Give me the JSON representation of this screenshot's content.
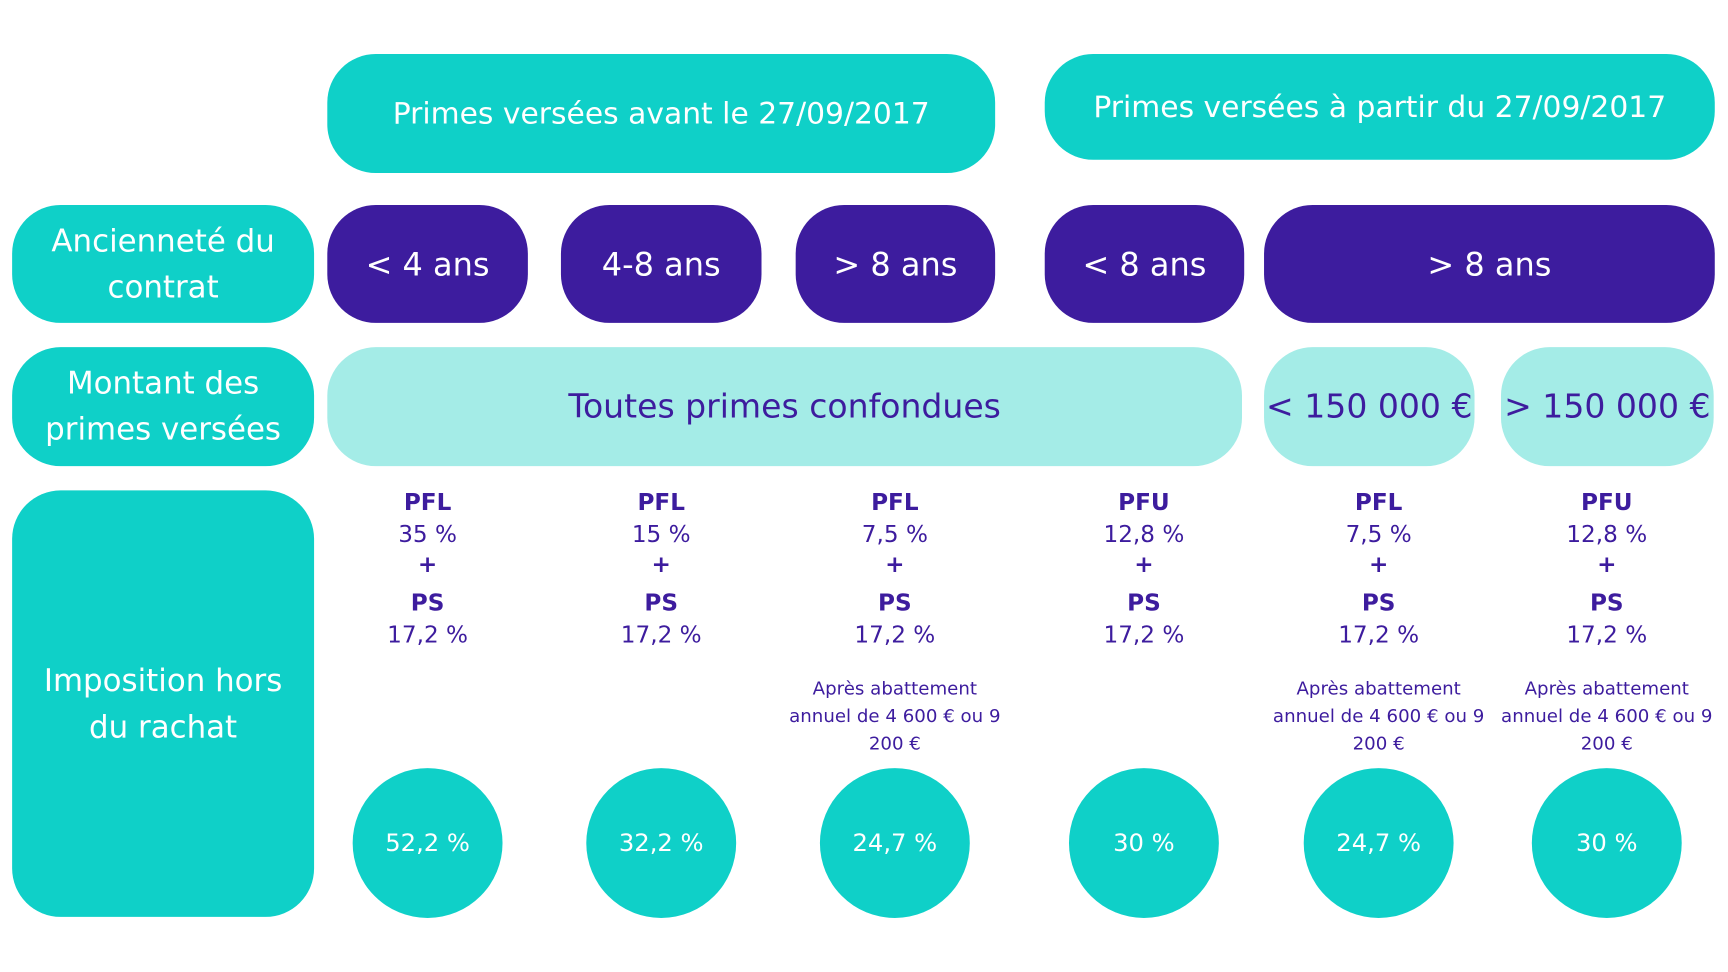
{
  "headers": [
    "Primes versées avant le 27/09/2017",
    "Primes versées à partir du 27/09/2017"
  ],
  "row_labels": [
    "Ancienneté du contrat",
    "Montant des primes versées",
    "Imposition hors du rachat"
  ],
  "anciennete": [
    "< 4 ans",
    "4-8 ans",
    "> 8 ans",
    "< 8 ans",
    "> 8 ans"
  ],
  "montant": [
    "Toutes primes confondues",
    "< 150 000 €",
    "> 150 000 €"
  ],
  "columns": [
    {
      "tax1": "PFL",
      "rate1": "35 %",
      "plus": "+",
      "tax2": "PS",
      "rate2": "17,2 %",
      "total": "52,2 %"
    },
    {
      "tax1": "PFL",
      "rate1": "15 %",
      "plus": "+",
      "tax2": "PS",
      "rate2": "17,2 %",
      "total": "32,2 %"
    },
    {
      "tax1": "PFL",
      "rate1": "7,5 %",
      "plus": "+",
      "tax2": "PS",
      "rate2": "17,2 %",
      "note": "Après abattement annuel de 4 600 € ou 9 200 €",
      "total": "24,7 %"
    },
    {
      "tax1": "PFU",
      "rate1": "12,8 %",
      "plus": "+",
      "tax2": "PS",
      "rate2": "17,2 %",
      "total": "30 %"
    },
    {
      "tax1": "PFL",
      "rate1": "7,5 %",
      "plus": "+",
      "tax2": "PS",
      "rate2": "17,2 %",
      "note": "Après abattement annuel de 4 600 € ou 9 200 €",
      "total": "24,7 %"
    },
    {
      "tax1": "PFU",
      "rate1": "12,8 %",
      "plus": "+",
      "tax2": "PS",
      "rate2": "17,2 %",
      "note": "Après abattement annuel de 4 600 € ou 9 200 €",
      "total": "30 %"
    }
  ]
}
